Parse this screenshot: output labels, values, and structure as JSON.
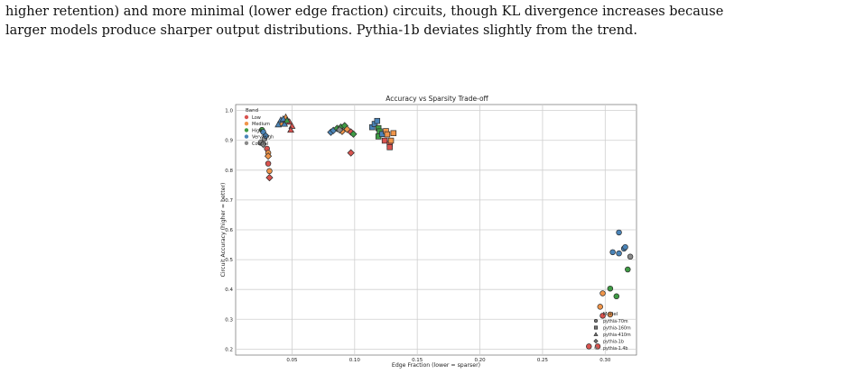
{
  "paragraph": {
    "line1": "higher retention) and more minimal (lower edge fraction) circuits, though KL divergence increases because",
    "line2": "larger models produce sharper output distributions. Pythia-1b deviates slightly from the trend."
  },
  "colors": {
    "Low": "#d9534f",
    "Medium": "#f0954a",
    "High": "#3f9b45",
    "Very High": "#4a84b8",
    "Control": "#8a8a8a"
  },
  "chart_data": {
    "type": "scatter",
    "title": "Accuracy vs Sparsity Trade-off",
    "xlabel": "Edge Fraction (lower = sparser)",
    "ylabel": "Circuit Accuracy (higher = better)",
    "xlim": [
      0.005,
      0.325
    ],
    "ylim": [
      0.18,
      1.02
    ],
    "xticks": [
      "0.05",
      "0.10",
      "0.15",
      "0.20",
      "0.25",
      "0.30"
    ],
    "xtick_values": [
      0.05,
      0.1,
      0.15,
      0.2,
      0.25,
      0.3
    ],
    "yticks": [
      "0.2",
      "0.3",
      "0.4",
      "0.5",
      "0.6",
      "0.7",
      "0.8",
      "0.9",
      "1.0"
    ],
    "ytick_values": [
      0.2,
      0.3,
      0.4,
      0.5,
      0.6,
      0.7,
      0.8,
      0.9,
      1.0
    ],
    "grid": true,
    "band_legend": {
      "title": "Band",
      "position": "top-left",
      "items": [
        "Low",
        "Medium",
        "High",
        "Very High",
        "Control"
      ]
    },
    "model_legend": {
      "title": "Model",
      "position": "bottom-right",
      "items": [
        {
          "label": "pythia-70m",
          "marker": "circle"
        },
        {
          "label": "pythia-160m",
          "marker": "square"
        },
        {
          "label": "pythia-410m",
          "marker": "triangle"
        },
        {
          "label": "pythia-1b",
          "marker": "diamond"
        },
        {
          "label": "pythia-1.4b",
          "marker": "plus"
        }
      ]
    },
    "points": [
      {
        "x": 0.287,
        "y": 0.209,
        "band": "Low",
        "marker": "circle"
      },
      {
        "x": 0.294,
        "y": 0.209,
        "band": "Low",
        "marker": "circle"
      },
      {
        "x": 0.298,
        "y": 0.312,
        "band": "Low",
        "marker": "circle"
      },
      {
        "x": 0.296,
        "y": 0.342,
        "band": "Medium",
        "marker": "circle"
      },
      {
        "x": 0.298,
        "y": 0.387,
        "band": "Medium",
        "marker": "circle"
      },
      {
        "x": 0.304,
        "y": 0.316,
        "band": "Medium",
        "marker": "circle"
      },
      {
        "x": 0.304,
        "y": 0.403,
        "band": "High",
        "marker": "circle"
      },
      {
        "x": 0.309,
        "y": 0.377,
        "band": "High",
        "marker": "circle"
      },
      {
        "x": 0.318,
        "y": 0.467,
        "band": "High",
        "marker": "circle"
      },
      {
        "x": 0.306,
        "y": 0.525,
        "band": "Very High",
        "marker": "circle"
      },
      {
        "x": 0.311,
        "y": 0.521,
        "band": "Very High",
        "marker": "circle"
      },
      {
        "x": 0.315,
        "y": 0.537,
        "band": "Very High",
        "marker": "circle"
      },
      {
        "x": 0.316,
        "y": 0.542,
        "band": "Very High",
        "marker": "circle"
      },
      {
        "x": 0.311,
        "y": 0.591,
        "band": "Very High",
        "marker": "circle"
      },
      {
        "x": 0.32,
        "y": 0.51,
        "band": "Control",
        "marker": "circle"
      },
      {
        "x": 0.03,
        "y": 0.872,
        "band": "Low",
        "marker": "circle"
      },
      {
        "x": 0.031,
        "y": 0.822,
        "band": "Low",
        "marker": "circle"
      },
      {
        "x": 0.032,
        "y": 0.797,
        "band": "Medium",
        "marker": "circle"
      },
      {
        "x": 0.031,
        "y": 0.858,
        "band": "Medium",
        "marker": "circle"
      },
      {
        "x": 0.026,
        "y": 0.935,
        "band": "High",
        "marker": "circle"
      },
      {
        "x": 0.027,
        "y": 0.928,
        "band": "Very High",
        "marker": "circle"
      },
      {
        "x": 0.028,
        "y": 0.905,
        "band": "Control",
        "marker": "circle"
      },
      {
        "x": 0.025,
        "y": 0.892,
        "band": "Control",
        "marker": "circle"
      },
      {
        "x": 0.032,
        "y": 0.775,
        "band": "Low",
        "marker": "diamond"
      },
      {
        "x": 0.031,
        "y": 0.847,
        "band": "Medium",
        "marker": "diamond"
      },
      {
        "x": 0.029,
        "y": 0.915,
        "band": "Very High",
        "marker": "diamond"
      },
      {
        "x": 0.027,
        "y": 0.887,
        "band": "Control",
        "marker": "diamond"
      },
      {
        "x": 0.042,
        "y": 0.958,
        "band": "Medium",
        "marker": "triangle"
      },
      {
        "x": 0.045,
        "y": 0.978,
        "band": "Medium",
        "marker": "triangle"
      },
      {
        "x": 0.048,
        "y": 0.962,
        "band": "Low",
        "marker": "triangle"
      },
      {
        "x": 0.05,
        "y": 0.948,
        "band": "Low",
        "marker": "triangle"
      },
      {
        "x": 0.049,
        "y": 0.935,
        "band": "Low",
        "marker": "triangle"
      },
      {
        "x": 0.041,
        "y": 0.968,
        "band": "Very High",
        "marker": "triangle"
      },
      {
        "x": 0.043,
        "y": 0.972,
        "band": "Very High",
        "marker": "triangle"
      },
      {
        "x": 0.044,
        "y": 0.955,
        "band": "Very High",
        "marker": "triangle"
      },
      {
        "x": 0.039,
        "y": 0.953,
        "band": "Very High",
        "marker": "triangle"
      },
      {
        "x": 0.046,
        "y": 0.967,
        "band": "High",
        "marker": "triangle"
      },
      {
        "x": 0.081,
        "y": 0.927,
        "band": "Very High",
        "marker": "diamond"
      },
      {
        "x": 0.083,
        "y": 0.933,
        "band": "Very High",
        "marker": "diamond"
      },
      {
        "x": 0.086,
        "y": 0.94,
        "band": "High",
        "marker": "diamond"
      },
      {
        "x": 0.089,
        "y": 0.944,
        "band": "High",
        "marker": "diamond"
      },
      {
        "x": 0.092,
        "y": 0.949,
        "band": "High",
        "marker": "diamond"
      },
      {
        "x": 0.09,
        "y": 0.93,
        "band": "Medium",
        "marker": "diamond"
      },
      {
        "x": 0.094,
        "y": 0.937,
        "band": "Medium",
        "marker": "diamond"
      },
      {
        "x": 0.097,
        "y": 0.928,
        "band": "Low",
        "marker": "diamond"
      },
      {
        "x": 0.099,
        "y": 0.921,
        "band": "High",
        "marker": "diamond"
      },
      {
        "x": 0.088,
        "y": 0.935,
        "band": "Control",
        "marker": "diamond"
      },
      {
        "x": 0.097,
        "y": 0.858,
        "band": "Low",
        "marker": "diamond"
      },
      {
        "x": 0.114,
        "y": 0.944,
        "band": "Very High",
        "marker": "square"
      },
      {
        "x": 0.116,
        "y": 0.955,
        "band": "Very High",
        "marker": "square"
      },
      {
        "x": 0.118,
        "y": 0.965,
        "band": "Very High",
        "marker": "square"
      },
      {
        "x": 0.119,
        "y": 0.941,
        "band": "High",
        "marker": "square"
      },
      {
        "x": 0.12,
        "y": 0.93,
        "band": "High",
        "marker": "square"
      },
      {
        "x": 0.119,
        "y": 0.913,
        "band": "High",
        "marker": "square"
      },
      {
        "x": 0.122,
        "y": 0.921,
        "band": "Very High",
        "marker": "square"
      },
      {
        "x": 0.125,
        "y": 0.931,
        "band": "Medium",
        "marker": "square"
      },
      {
        "x": 0.126,
        "y": 0.92,
        "band": "Medium",
        "marker": "square"
      },
      {
        "x": 0.131,
        "y": 0.924,
        "band": "Medium",
        "marker": "square"
      },
      {
        "x": 0.124,
        "y": 0.899,
        "band": "Low",
        "marker": "square"
      },
      {
        "x": 0.128,
        "y": 0.888,
        "band": "Low",
        "marker": "square"
      },
      {
        "x": 0.128,
        "y": 0.877,
        "band": "Low",
        "marker": "square"
      },
      {
        "x": 0.129,
        "y": 0.899,
        "band": "Medium",
        "marker": "square"
      }
    ]
  }
}
